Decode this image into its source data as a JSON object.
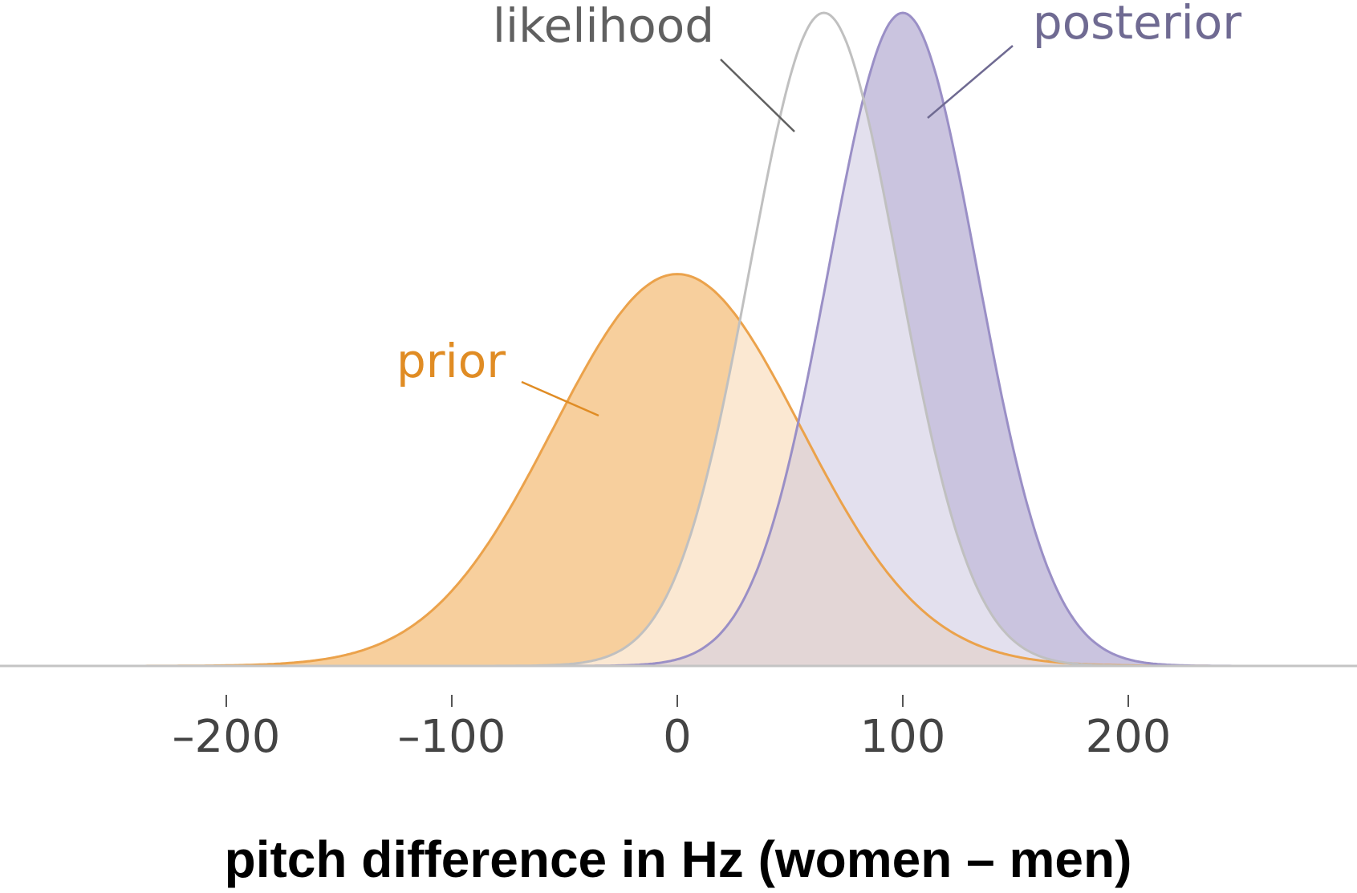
{
  "chart_data": {
    "type": "area",
    "title": "",
    "xlabel": "pitch difference in Hz (women – men)",
    "ylabel": "",
    "xlim": [
      -300,
      300
    ],
    "x_ticks": [
      -200,
      -100,
      0,
      100,
      200
    ],
    "x_tick_labels": [
      "–200",
      "–100",
      "0",
      "100",
      "200"
    ],
    "y_axis_shown": false,
    "grid": false,
    "legend": "none",
    "series": [
      {
        "name": "prior",
        "distribution": "normal",
        "mean": 0,
        "sd": 55,
        "relative_peak_height": 0.6,
        "fill": "#f7cf9d",
        "stroke": "#eba24b",
        "label_color": "#e08c24"
      },
      {
        "name": "likelihood",
        "distribution": "normal",
        "mean": 65,
        "sd": 33,
        "relative_peak_height": 1.0,
        "fill": "#ffffff",
        "stroke": "#c0c0c0",
        "label_color": "#606060"
      },
      {
        "name": "posterior",
        "distribution": "normal",
        "mean": 100,
        "sd": 33,
        "relative_peak_height": 1.0,
        "fill": "#cac4df",
        "stroke": "#9a8fc6",
        "label_color": "#6f6a92"
      }
    ]
  }
}
